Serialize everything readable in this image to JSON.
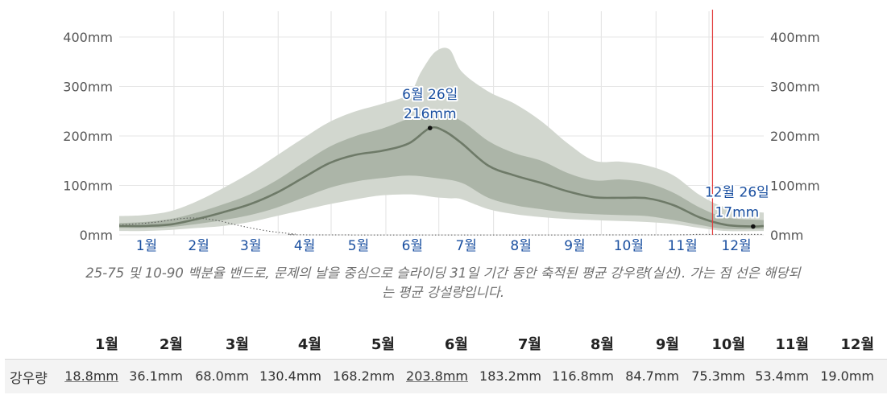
{
  "chart_data": {
    "type": "area",
    "months": [
      "1월",
      "2월",
      "3월",
      "4월",
      "5월",
      "6월",
      "7월",
      "8월",
      "9월",
      "10월",
      "11월",
      "12월"
    ],
    "y_ticks": [
      "0mm",
      "100mm",
      "200mm",
      "300mm",
      "400mm"
    ],
    "ylim": [
      0,
      400
    ],
    "x_unit": "day of year",
    "mean": [
      [
        1,
        18
      ],
      [
        15,
        18
      ],
      [
        30,
        21
      ],
      [
        45,
        32
      ],
      [
        60,
        46
      ],
      [
        75,
        62
      ],
      [
        90,
        85
      ],
      [
        105,
        115
      ],
      [
        120,
        145
      ],
      [
        135,
        162
      ],
      [
        150,
        170
      ],
      [
        165,
        185
      ],
      [
        177,
        216
      ],
      [
        185,
        210
      ],
      [
        195,
        185
      ],
      [
        210,
        140
      ],
      [
        225,
        120
      ],
      [
        240,
        105
      ],
      [
        255,
        88
      ],
      [
        270,
        76
      ],
      [
        285,
        75
      ],
      [
        300,
        74
      ],
      [
        315,
        60
      ],
      [
        330,
        35
      ],
      [
        345,
        20
      ],
      [
        360,
        17
      ],
      [
        366,
        18
      ]
    ],
    "band_25_75": [
      [
        1,
        14,
        24
      ],
      [
        15,
        14,
        26
      ],
      [
        30,
        16,
        32
      ],
      [
        45,
        22,
        45
      ],
      [
        60,
        30,
        62
      ],
      [
        75,
        40,
        82
      ],
      [
        90,
        55,
        110
      ],
      [
        105,
        75,
        145
      ],
      [
        120,
        95,
        178
      ],
      [
        135,
        108,
        200
      ],
      [
        150,
        115,
        215
      ],
      [
        165,
        120,
        235
      ],
      [
        180,
        115,
        250
      ],
      [
        195,
        105,
        230
      ],
      [
        210,
        75,
        190
      ],
      [
        225,
        60,
        165
      ],
      [
        240,
        52,
        150
      ],
      [
        255,
        45,
        125
      ],
      [
        270,
        42,
        110
      ],
      [
        285,
        40,
        112
      ],
      [
        300,
        38,
        105
      ],
      [
        315,
        30,
        85
      ],
      [
        330,
        20,
        55
      ],
      [
        345,
        12,
        35
      ],
      [
        366,
        12,
        30
      ]
    ],
    "band_10_90": [
      [
        1,
        8,
        38
      ],
      [
        15,
        8,
        40
      ],
      [
        30,
        10,
        48
      ],
      [
        45,
        14,
        68
      ],
      [
        60,
        18,
        95
      ],
      [
        75,
        26,
        125
      ],
      [
        90,
        38,
        160
      ],
      [
        105,
        50,
        195
      ],
      [
        120,
        62,
        228
      ],
      [
        135,
        72,
        250
      ],
      [
        150,
        80,
        265
      ],
      [
        165,
        82,
        285
      ],
      [
        172,
        80,
        330
      ],
      [
        180,
        76,
        370
      ],
      [
        188,
        74,
        375
      ],
      [
        195,
        72,
        330
      ],
      [
        210,
        52,
        290
      ],
      [
        225,
        42,
        265
      ],
      [
        240,
        36,
        230
      ],
      [
        255,
        32,
        185
      ],
      [
        270,
        30,
        150
      ],
      [
        285,
        28,
        148
      ],
      [
        300,
        26,
        140
      ],
      [
        315,
        22,
        120
      ],
      [
        330,
        14,
        80
      ],
      [
        345,
        8,
        55
      ],
      [
        366,
        8,
        45
      ]
    ],
    "snowfall": [
      [
        1,
        20
      ],
      [
        20,
        25
      ],
      [
        40,
        34
      ],
      [
        55,
        30
      ],
      [
        70,
        18
      ],
      [
        85,
        8
      ],
      [
        100,
        2
      ],
      [
        115,
        0
      ],
      [
        300,
        0
      ],
      [
        330,
        1
      ],
      [
        366,
        1
      ]
    ],
    "annotations": [
      {
        "day": 177,
        "value": 216,
        "date": "6월 26일",
        "amount": "216mm"
      },
      {
        "day": 360,
        "value": 17,
        "date": "12월 26일",
        "amount": "17mm"
      }
    ],
    "current_day": 337,
    "colors": {
      "mean": "#6e7a68",
      "band_inner": "#a6afa1",
      "band_outer": "#d2d7cf",
      "marker": "#e23c3c",
      "label": "#1a4fa0"
    }
  },
  "caption": "25-75 및 10-90 백분율 밴드로, 문제의 날을 중심으로 슬라이딩 31일 기간 동안 축적된 평균 강우량(실선). 가는 점 선은 해당되는 평균 강설량입니다.",
  "table": {
    "row_label": "강우량",
    "headers": [
      "1월",
      "2월",
      "3월",
      "4월",
      "5월",
      "6월",
      "7월",
      "8월",
      "9월",
      "10월",
      "11월",
      "12월"
    ],
    "values": [
      "18.8mm",
      "36.1mm",
      "68.0mm",
      "130.4mm",
      "168.2mm",
      "203.8mm",
      "183.2mm",
      "116.8mm",
      "84.7mm",
      "75.3mm",
      "53.4mm",
      "19.0mm"
    ]
  }
}
